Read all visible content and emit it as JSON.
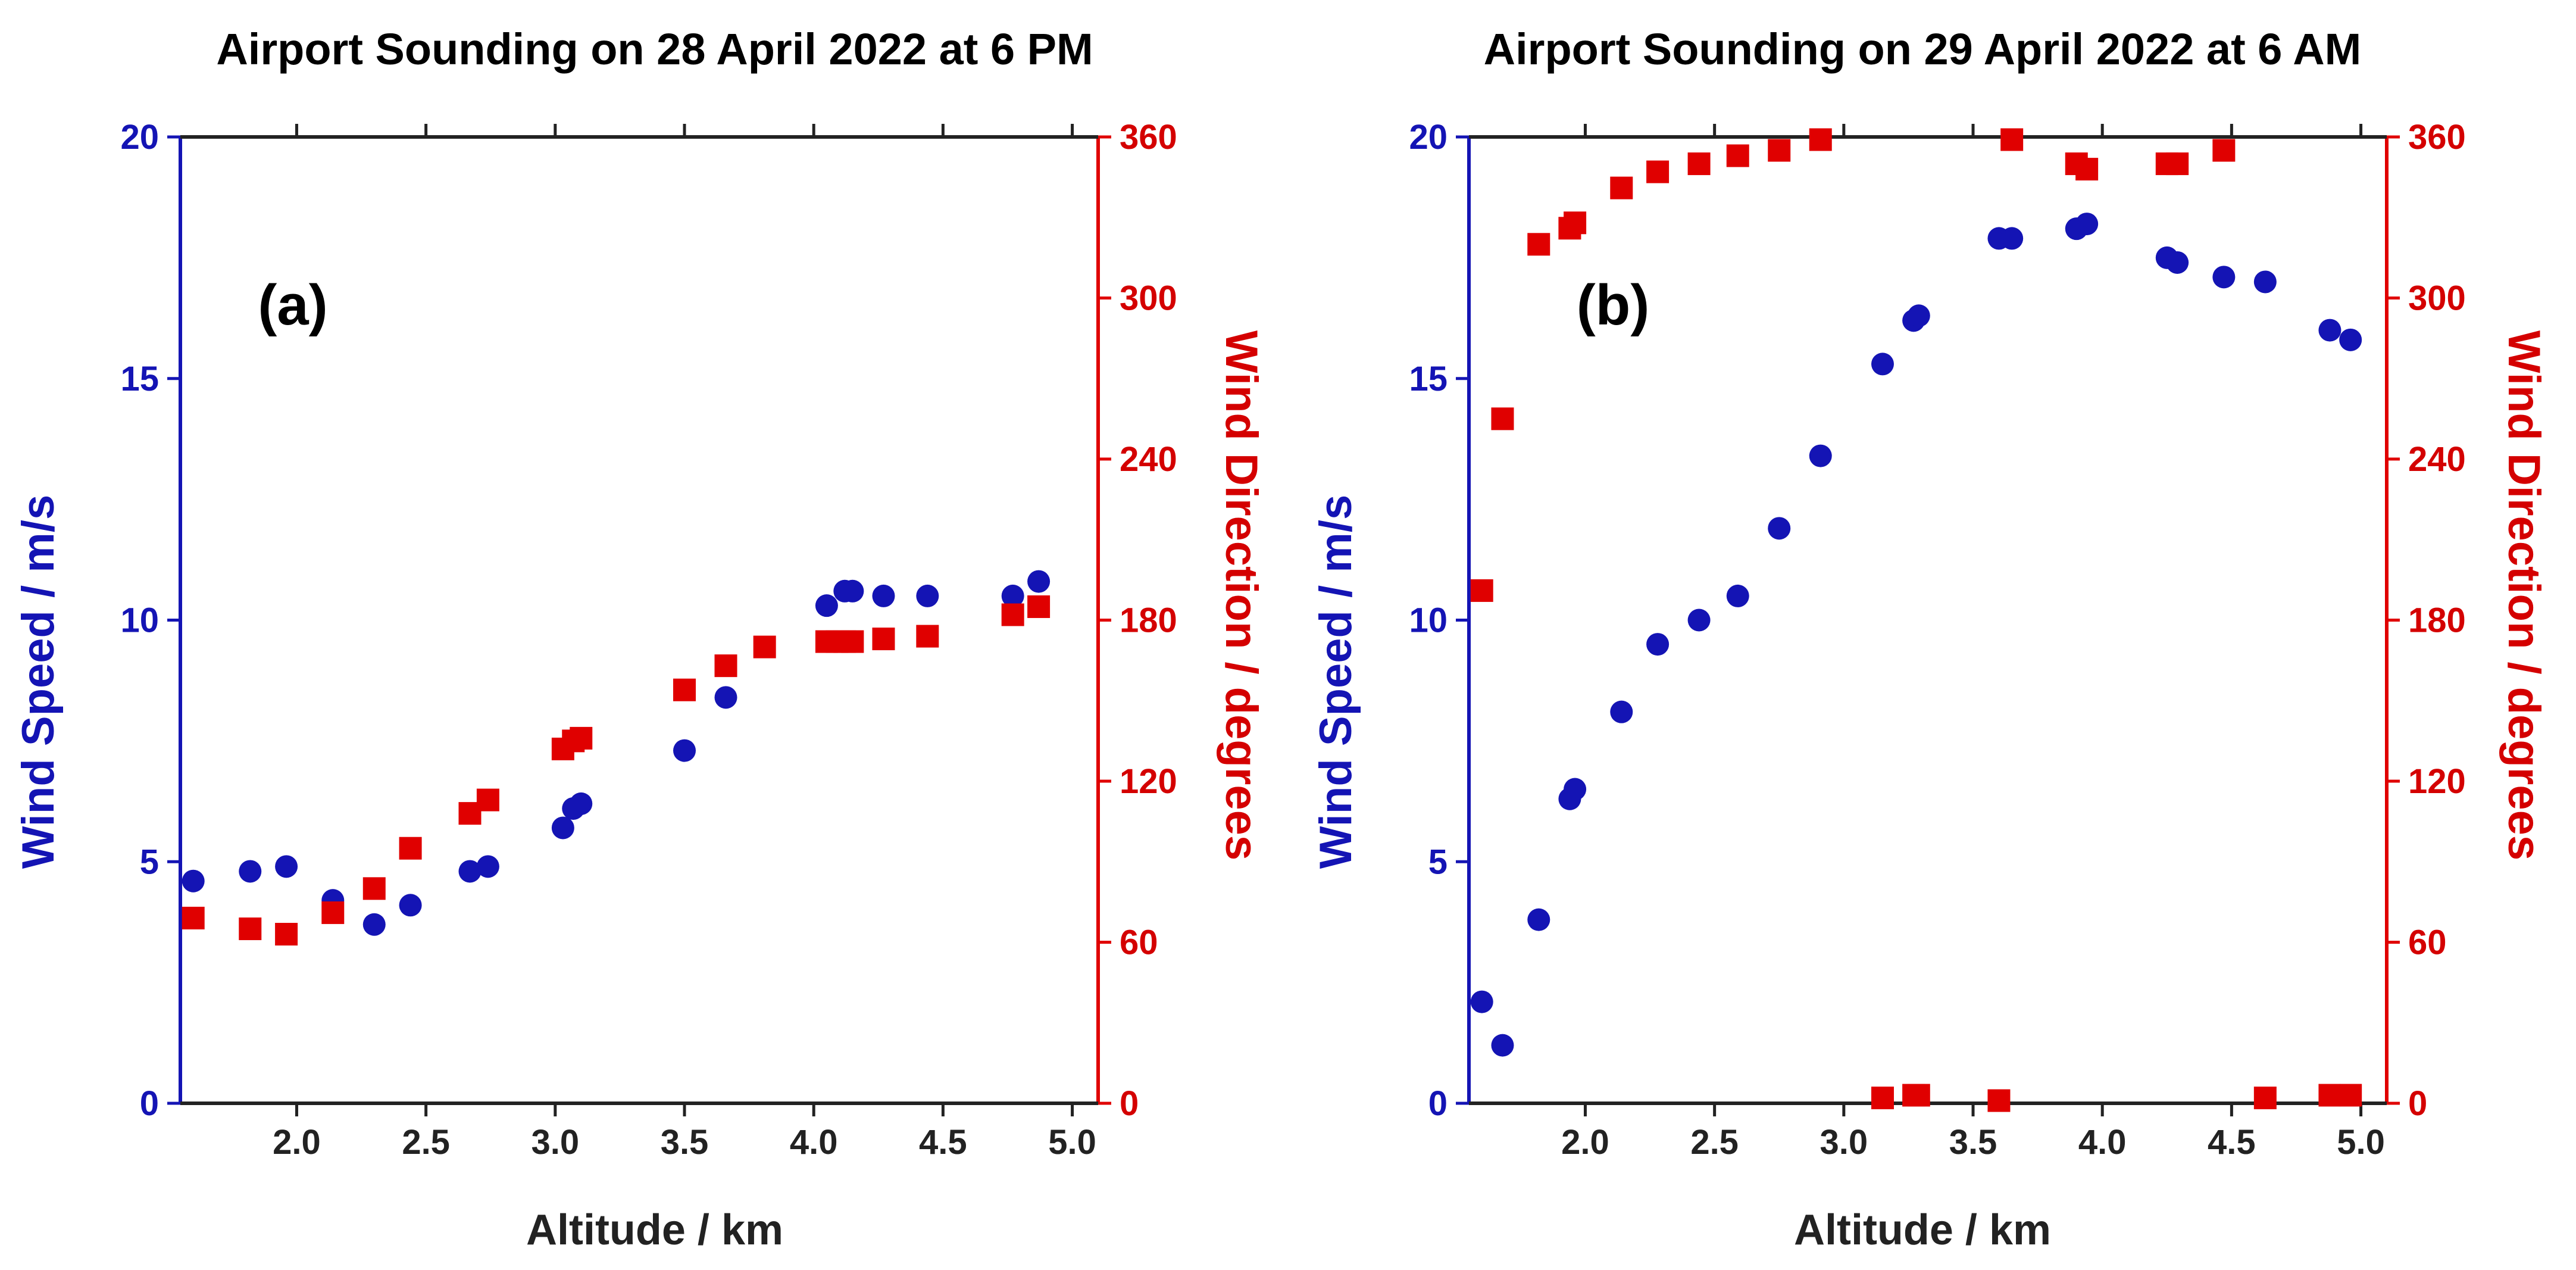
{
  "colors": {
    "speed": "#1414b4",
    "direction": "#e00000",
    "axis_dark": "#222222"
  },
  "chart_data": [
    {
      "type": "scatter",
      "title": "Airport Sounding on 28 April 2022 at 6 PM",
      "panel_label": "(a)",
      "xlabel": "Altitude / km",
      "ylabel": "Wind Speed / m/s",
      "y2label": "Wind Direction / degrees",
      "xlim": [
        1.55,
        5.1
      ],
      "ylim": [
        0,
        20
      ],
      "y2lim": [
        0,
        360
      ],
      "xticks": [
        "2.0",
        "2.5",
        "3.0",
        "3.5",
        "4.0",
        "4.5",
        "5.0"
      ],
      "yticks": [
        "0",
        "5",
        "10",
        "15",
        "20"
      ],
      "y2ticks": [
        "0",
        "60",
        "120",
        "180",
        "240",
        "300",
        "360"
      ],
      "series": [
        {
          "name": "Wind Speed",
          "axis": "left",
          "marker": "circle",
          "x": [
            1.6,
            1.82,
            1.96,
            2.14,
            2.3,
            2.44,
            2.67,
            2.74,
            3.03,
            3.07,
            3.1,
            3.5,
            3.66,
            4.05,
            4.12,
            4.15,
            4.27,
            4.44,
            4.77,
            4.87
          ],
          "y": [
            4.6,
            4.8,
            4.9,
            4.2,
            3.7,
            4.1,
            4.8,
            4.9,
            5.7,
            6.1,
            6.2,
            7.3,
            8.4,
            10.3,
            10.6,
            10.6,
            10.5,
            10.5,
            10.5,
            10.8
          ]
        },
        {
          "name": "Wind Direction",
          "axis": "right",
          "marker": "square",
          "x": [
            1.6,
            1.82,
            1.96,
            2.14,
            2.3,
            2.44,
            2.67,
            2.74,
            3.03,
            3.07,
            3.1,
            3.5,
            3.66,
            3.81,
            4.05,
            4.09,
            4.12,
            4.15,
            4.27,
            4.44,
            4.77,
            4.87
          ],
          "y": [
            69,
            65,
            63,
            71,
            80,
            95,
            108,
            113,
            132,
            135,
            136,
            154,
            163,
            170,
            172,
            172,
            172,
            172,
            173,
            174,
            182,
            185
          ]
        }
      ]
    },
    {
      "type": "scatter",
      "title": "Airport Sounding on 29 April 2022 at 6 AM",
      "panel_label": "(b)",
      "xlabel": "Altitude / km",
      "ylabel": "Wind Speed / m/s",
      "y2label": "Wind Direction / degrees",
      "xlim": [
        1.55,
        5.1
      ],
      "ylim": [
        0,
        20
      ],
      "y2lim": [
        0,
        360
      ],
      "xticks": [
        "2.0",
        "2.5",
        "3.0",
        "3.5",
        "4.0",
        "4.5",
        "5.0"
      ],
      "yticks": [
        "0",
        "5",
        "10",
        "15",
        "20"
      ],
      "y2ticks": [
        "0",
        "60",
        "120",
        "180",
        "240",
        "300",
        "360"
      ],
      "series": [
        {
          "name": "Wind Speed",
          "axis": "left",
          "marker": "circle",
          "x": [
            1.6,
            1.68,
            1.82,
            1.94,
            1.96,
            2.14,
            2.28,
            2.44,
            2.59,
            2.75,
            2.91,
            3.15,
            3.27,
            3.29,
            3.6,
            3.65,
            3.9,
            3.94,
            4.25,
            4.29,
            4.47,
            4.63,
            4.88,
            4.96
          ],
          "y": [
            2.1,
            1.2,
            3.8,
            6.3,
            6.5,
            8.1,
            9.5,
            10.0,
            10.5,
            11.9,
            13.4,
            15.3,
            16.2,
            16.3,
            17.9,
            17.9,
            18.1,
            18.2,
            17.5,
            17.4,
            17.1,
            17.0,
            16.0,
            15.8
          ]
        },
        {
          "name": "Wind Direction",
          "axis": "right",
          "marker": "square",
          "x": [
            1.6,
            1.68,
            1.82,
            1.94,
            1.96,
            2.14,
            2.28,
            2.44,
            2.59,
            2.75,
            2.91,
            3.15,
            3.27,
            3.29,
            3.6,
            3.65,
            3.9,
            3.94,
            4.25,
            4.29,
            4.47,
            4.63,
            4.88,
            4.96
          ],
          "y": [
            191,
            255,
            320,
            326,
            328,
            341,
            347,
            350,
            353,
            355,
            359,
            2,
            3,
            3,
            1,
            359,
            350,
            348,
            350,
            350,
            355,
            2,
            3,
            3
          ]
        }
      ]
    }
  ]
}
